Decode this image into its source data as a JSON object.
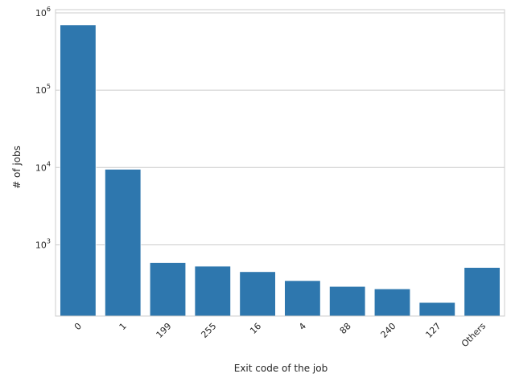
{
  "chart_data": {
    "type": "bar",
    "categories": [
      "0",
      "1",
      "199",
      "255",
      "16",
      "4",
      "88",
      "240",
      "127",
      "Others"
    ],
    "values": [
      700000,
      9500,
      590,
      530,
      450,
      345,
      290,
      270,
      180,
      510
    ],
    "xlabel": "Exit code of the job",
    "ylabel": "# of jobs",
    "yscale": "log",
    "ylim": [
      120,
      1100000
    ],
    "yticks": [
      {
        "value": 1000,
        "base": "10",
        "exp": "3"
      },
      {
        "value": 10000,
        "base": "10",
        "exp": "4"
      },
      {
        "value": 100000,
        "base": "10",
        "exp": "5"
      },
      {
        "value": 1000000,
        "base": "10",
        "exp": "6"
      }
    ],
    "bar_color": "#2e77ae",
    "grid": "horizontal",
    "x_tick_rotation": -45
  }
}
